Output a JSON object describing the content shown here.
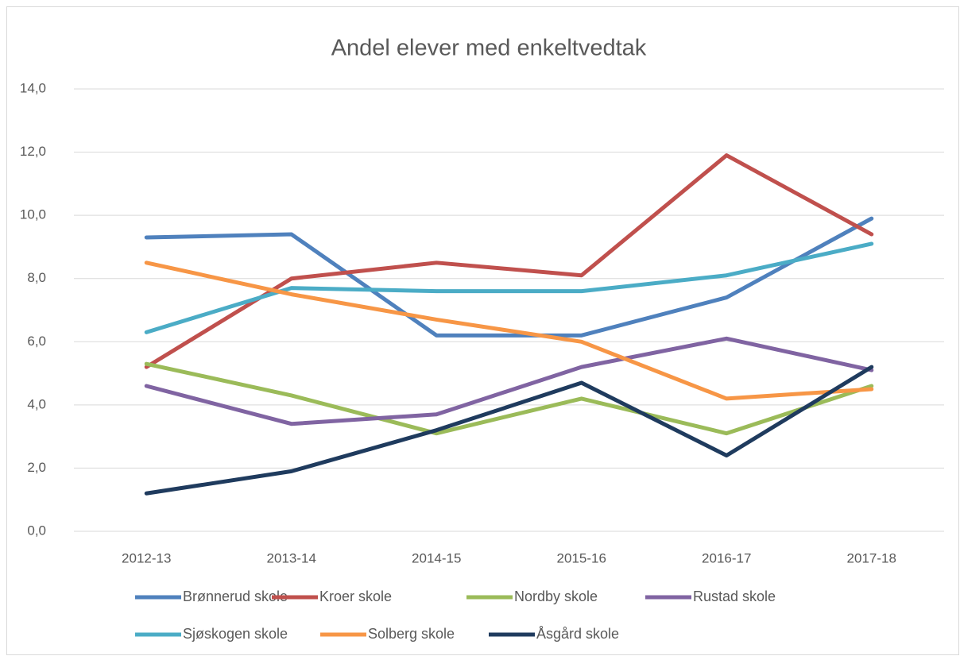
{
  "chart_data": {
    "type": "line",
    "title": "Andel elever med enkeltvedtak",
    "categories": [
      "2012-13",
      "2013-14",
      "2014-15",
      "2015-16",
      "2016-17",
      "2017-18"
    ],
    "series": [
      {
        "name": "Brønnerud skole",
        "color": "#4f81bd",
        "values": [
          9.3,
          9.4,
          6.2,
          6.2,
          7.4,
          9.9
        ]
      },
      {
        "name": "Kroer skole",
        "color": "#c0504d",
        "values": [
          5.2,
          8.0,
          8.5,
          8.1,
          11.9,
          9.4
        ]
      },
      {
        "name": "Nordby skole",
        "color": "#9bbb59",
        "values": [
          5.3,
          4.3,
          3.1,
          4.2,
          3.1,
          4.6
        ]
      },
      {
        "name": "Rustad skole",
        "color": "#8064a2",
        "values": [
          4.6,
          3.4,
          3.7,
          5.2,
          6.1,
          5.1
        ]
      },
      {
        "name": "Sjøskogen skole",
        "color": "#4bacc6",
        "values": [
          6.3,
          7.7,
          7.6,
          7.6,
          8.1,
          9.1
        ]
      },
      {
        "name": "Solberg skole",
        "color": "#f79646",
        "values": [
          8.5,
          7.5,
          6.7,
          6.0,
          4.2,
          4.5
        ]
      },
      {
        "name": "Åsgård skole",
        "color": "#1f3b5e",
        "values": [
          1.2,
          1.9,
          3.2,
          4.7,
          2.4,
          5.2
        ]
      }
    ],
    "ylim": [
      0,
      14
    ],
    "yticks": [
      {
        "value": 0,
        "label": "0,0"
      },
      {
        "value": 2,
        "label": "2,0"
      },
      {
        "value": 4,
        "label": "4,0"
      },
      {
        "value": 6,
        "label": "6,0"
      },
      {
        "value": 8,
        "label": "8,0"
      },
      {
        "value": 10,
        "label": "10,0"
      },
      {
        "value": 12,
        "label": "12,0"
      },
      {
        "value": 14,
        "label": "14,0"
      }
    ],
    "grid": true
  }
}
